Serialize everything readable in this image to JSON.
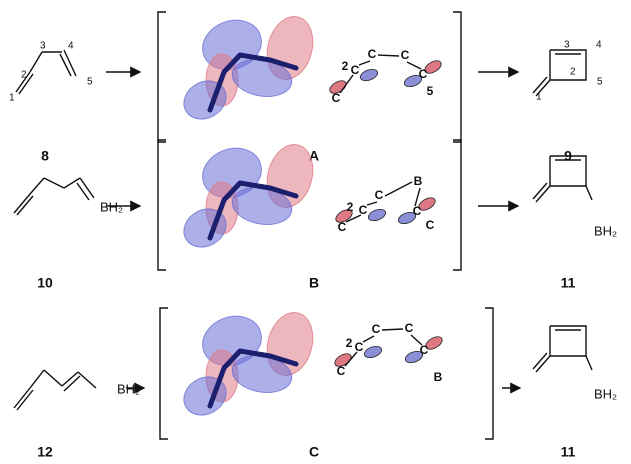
{
  "rows": [
    {
      "reactant": {
        "label": "8",
        "atoms": [
          "1",
          "2",
          "3",
          "4",
          "5"
        ]
      },
      "intermediate": {
        "label": "A",
        "atoms": [
          "C",
          "2",
          "C",
          "C",
          "C",
          "C",
          "5"
        ]
      },
      "product": {
        "label": "9",
        "atoms": [
          "3",
          "4",
          "2",
          "5",
          "1"
        ]
      }
    },
    {
      "reactant": {
        "label": "10",
        "atoms": [
          "BH₂"
        ]
      },
      "intermediate": {
        "label": "B",
        "atoms": [
          "C",
          "2",
          "C",
          "C",
          "B",
          "C",
          "C"
        ]
      },
      "product": {
        "label": "11",
        "atoms": [
          "BH₂"
        ]
      }
    },
    {
      "reactant": {
        "label": "12",
        "atoms": [
          "BH₂"
        ]
      },
      "intermediate": {
        "label": "C",
        "atoms": [
          "C",
          "2",
          "C",
          "C",
          "C",
          "C",
          "B"
        ]
      },
      "product": {
        "label": "11",
        "atoms": [
          "BH₂"
        ]
      }
    }
  ]
}
